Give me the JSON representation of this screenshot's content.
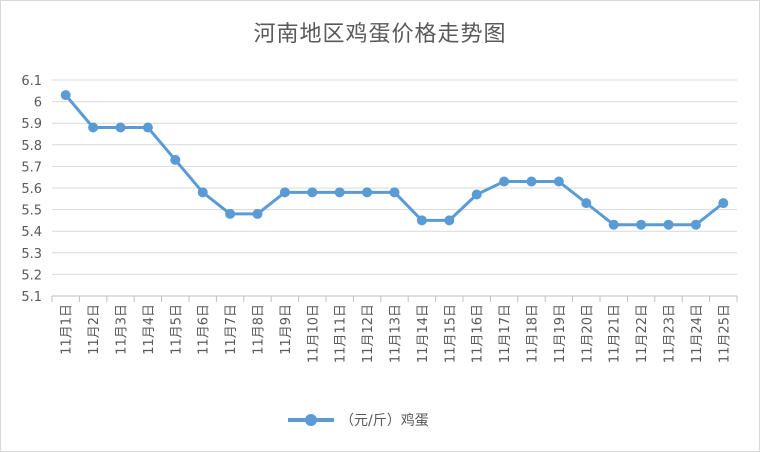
{
  "chart_data": {
    "type": "line",
    "title": "河南地区鸡蛋价格走势图",
    "categories": [
      "11月1日",
      "11月2日",
      "11月3日",
      "11月4日",
      "11月5日",
      "11月6日",
      "11月7日",
      "11月8日",
      "11月9日",
      "11月10日",
      "11月11日",
      "11月12日",
      "11月13日",
      "11月14日",
      "11月15日",
      "11月16日",
      "11月17日",
      "11月18日",
      "11月19日",
      "11月20日",
      "11月21日",
      "11月22日",
      "11月23日",
      "11月24日",
      "11月25日"
    ],
    "series": [
      {
        "name": "（元/斤）鸡蛋",
        "values": [
          6.03,
          5.88,
          5.88,
          5.88,
          5.73,
          5.58,
          5.48,
          5.48,
          5.58,
          5.58,
          5.58,
          5.58,
          5.58,
          5.45,
          5.45,
          5.57,
          5.63,
          5.63,
          5.63,
          5.53,
          5.43,
          5.43,
          5.43,
          5.43,
          5.53
        ],
        "color": "#5b9bd5"
      }
    ],
    "yticks": [
      "5.1",
      "5.2",
      "5.3",
      "5.4",
      "5.5",
      "5.6",
      "5.7",
      "5.8",
      "5.9",
      "6",
      "6.1"
    ],
    "ylim": [
      5.1,
      6.1
    ],
    "grid": true,
    "legend": "bottom"
  }
}
